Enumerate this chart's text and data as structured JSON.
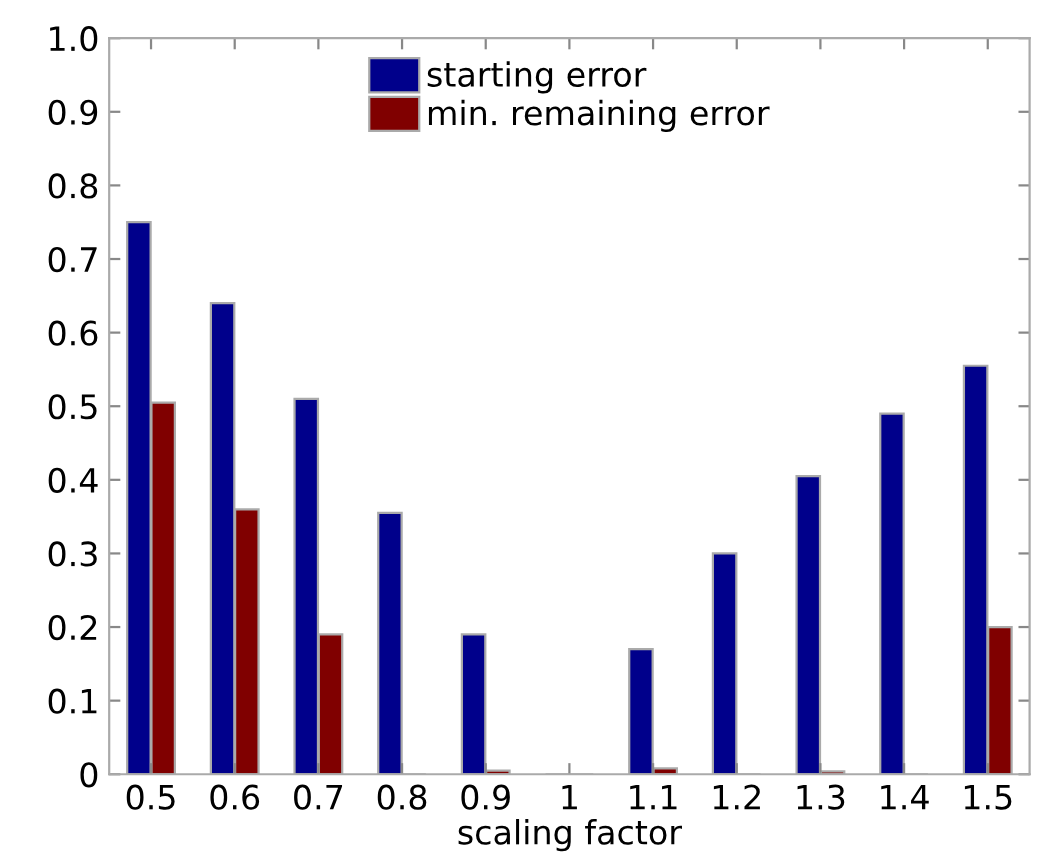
{
  "chart_data": {
    "type": "bar",
    "xlabel": "scaling factor",
    "categories": [
      "0.5",
      "0.6",
      "0.7",
      "0.8",
      "0.9",
      "1",
      "1.1",
      "1.2",
      "1.3",
      "1.4",
      "1.5"
    ],
    "series": [
      {
        "name": "starting error",
        "color": "#00008b",
        "values": [
          0.75,
          0.64,
          0.51,
          0.355,
          0.19,
          0,
          0.17,
          0.3,
          0.405,
          0.49,
          0.555
        ]
      },
      {
        "name": "min. remaining error",
        "color": "#800000",
        "values": [
          0.505,
          0.36,
          0.19,
          0,
          0.005,
          0,
          0.008,
          0,
          0.004,
          0,
          0.2
        ]
      }
    ],
    "ylim": [
      0,
      1.0
    ],
    "yticks": [
      0,
      0.1,
      0.2,
      0.3,
      0.4,
      0.5,
      0.6,
      0.7,
      0.8,
      0.9,
      {
        "value": 1.0,
        "label": "1.0"
      }
    ],
    "grid": false,
    "legend": "top"
  }
}
